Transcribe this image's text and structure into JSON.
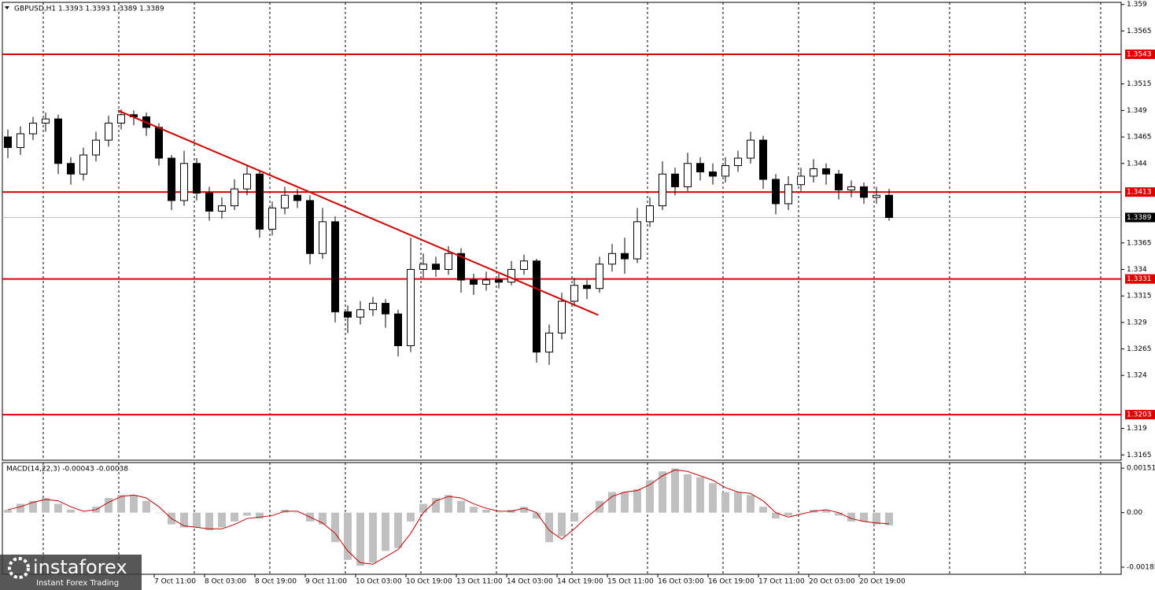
{
  "chart_data": {
    "type": "candlestick",
    "header": "GBPUSD,H1  1.3393 1.3393 1.3389 1.3389",
    "categories": [
      null,
      null,
      null,
      null,
      null,
      null,
      null,
      null,
      null,
      null,
      null,
      null,
      "7 Oct 11:00",
      null,
      null,
      null,
      "8 Oct 03:00",
      null,
      null,
      null,
      "8 Oct 19:00",
      null,
      null,
      null,
      "9 Oct 11:00",
      null,
      null,
      null,
      "10 Oct 03:00",
      null,
      null,
      null,
      "10 Oct 19:00",
      null,
      null,
      null,
      "13 Oct 11:00",
      null,
      null,
      null,
      "14 Oct 03:00",
      null,
      null,
      null,
      "14 Oct 19:00",
      null,
      null,
      null,
      "15 Oct 11:00",
      null,
      null,
      null,
      "16 Oct 03:00",
      null,
      null,
      null,
      "16 Oct 19:00",
      null,
      null,
      null,
      "17 Oct 11:00",
      null,
      null,
      null,
      "20 Oct 03:00",
      null,
      null,
      null,
      "20 Oct 19:00",
      null,
      null
    ],
    "open": [
      1.3465,
      1.3455,
      1.3468,
      1.3478,
      1.3482,
      1.344,
      1.343,
      1.3448,
      1.3462,
      1.3478,
      1.3486,
      1.3484,
      1.3474,
      1.3445,
      1.3405,
      1.344,
      1.3412,
      1.3395,
      1.34,
      1.3416,
      1.343,
      1.3378,
      1.3398,
      1.341,
      1.3405,
      1.3355,
      1.3385,
      1.33,
      1.3295,
      1.3302,
      1.3308,
      1.3298,
      1.3268,
      1.334,
      1.3345,
      1.334,
      1.3355,
      1.333,
      1.3326,
      1.333,
      1.3328,
      1.334,
      1.3348,
      1.3262,
      1.328,
      1.331,
      1.3325,
      1.3322,
      1.3345,
      1.3355,
      1.335,
      1.3385,
      1.34,
      1.343,
      1.3418,
      1.344,
      1.3432,
      1.3428,
      1.3438,
      1.3445,
      1.3462,
      1.3425,
      1.3402,
      1.342,
      1.3428,
      1.3435,
      1.343,
      1.3415,
      1.3418,
      1.3408,
      1.341
    ],
    "high": [
      1.3472,
      1.3475,
      1.3484,
      1.3488,
      1.3486,
      1.3446,
      1.3455,
      1.347,
      1.3485,
      1.3491,
      1.349,
      1.3488,
      1.3478,
      1.3448,
      1.3452,
      1.3445,
      1.3418,
      1.3408,
      1.3425,
      1.3438,
      1.3434,
      1.3404,
      1.3418,
      1.3416,
      1.341,
      1.3398,
      1.339,
      1.3306,
      1.331,
      1.3314,
      1.3312,
      1.3302,
      1.337,
      1.3355,
      1.3352,
      1.3362,
      1.336,
      1.3336,
      1.3338,
      1.3336,
      1.3348,
      1.3354,
      1.335,
      1.3288,
      1.3318,
      1.3332,
      1.333,
      1.3352,
      1.3364,
      1.337,
      1.3398,
      1.3408,
      1.3442,
      1.3436,
      1.345,
      1.3446,
      1.344,
      1.3446,
      1.3452,
      1.347,
      1.3466,
      1.343,
      1.3428,
      1.3436,
      1.3444,
      1.344,
      1.3434,
      1.3424,
      1.3422,
      1.3418,
      1.3416
    ],
    "low": [
      1.3445,
      1.3448,
      1.3462,
      1.347,
      1.343,
      1.342,
      1.3424,
      1.3442,
      1.3456,
      1.3472,
      1.3476,
      1.3466,
      1.3438,
      1.3396,
      1.34,
      1.3405,
      1.3386,
      1.3388,
      1.3396,
      1.341,
      1.337,
      1.3372,
      1.3392,
      1.3398,
      1.3345,
      1.335,
      1.329,
      1.328,
      1.3288,
      1.3296,
      1.3285,
      1.3258,
      1.3262,
      1.3332,
      1.3333,
      1.3335,
      1.3318,
      1.3316,
      1.332,
      1.3322,
      1.3325,
      1.3335,
      1.3252,
      1.325,
      1.3274,
      1.3305,
      1.3312,
      1.3318,
      1.3338,
      1.3336,
      1.3346,
      1.338,
      1.3396,
      1.341,
      1.3414,
      1.3424,
      1.342,
      1.3422,
      1.3432,
      1.344,
      1.3416,
      1.3392,
      1.3396,
      1.3414,
      1.3422,
      1.342,
      1.3406,
      1.3408,
      1.3402,
      1.3402,
      1.3386
    ],
    "close": [
      1.3455,
      1.3468,
      1.3478,
      1.3482,
      1.344,
      1.343,
      1.3448,
      1.3462,
      1.3478,
      1.3486,
      1.3484,
      1.3474,
      1.3445,
      1.3405,
      1.344,
      1.3412,
      1.3395,
      1.34,
      1.3416,
      1.343,
      1.3378,
      1.3398,
      1.341,
      1.3405,
      1.3355,
      1.3385,
      1.33,
      1.3295,
      1.3302,
      1.3308,
      1.3298,
      1.3268,
      1.334,
      1.3345,
      1.334,
      1.3355,
      1.333,
      1.3326,
      1.333,
      1.3328,
      1.334,
      1.3348,
      1.3262,
      1.328,
      1.331,
      1.3325,
      1.3322,
      1.3345,
      1.3355,
      1.335,
      1.3385,
      1.34,
      1.343,
      1.3418,
      1.344,
      1.3432,
      1.3428,
      1.3438,
      1.3445,
      1.3462,
      1.3425,
      1.3402,
      1.342,
      1.3428,
      1.3435,
      1.343,
      1.3415,
      1.3418,
      1.3408,
      1.341,
      1.3389
    ],
    "ylim": [
      1.316,
      1.3592
    ],
    "yticks": [
      1.359,
      1.3565,
      1.3515,
      1.349,
      1.3465,
      1.344,
      1.3365,
      1.334,
      1.3315,
      1.329,
      1.3265,
      1.324,
      1.319,
      1.3165
    ],
    "levels": [
      1.3543,
      1.3413,
      1.3331,
      1.3203
    ],
    "level_color": "#e00000",
    "last_price": 1.3389,
    "trend_line": {
      "x": [
        8.75,
        46.9
      ],
      "y": [
        1.349,
        1.3297
      ],
      "color": "#d00000"
    },
    "indicator": {
      "type": "macd",
      "title": "MACD(14,22,3) -0.00043 -0.00038",
      "histogram": [
        0.0001,
        0.0003,
        0.0004,
        0.0005,
        0.0003,
        0.0001,
        0,
        0.0002,
        0.0005,
        0.0006,
        0.0006,
        0.0004,
        0,
        -0.0004,
        -0.0005,
        -0.0005,
        -0.0006,
        -0.0005,
        -0.0003,
        -0.0001,
        -0.0002,
        0,
        0.0001,
        0,
        -0.0003,
        -0.0004,
        -0.001,
        -0.0016,
        -0.0018,
        -0.0017,
        -0.0013,
        -0.0012,
        -0.0003,
        0.0003,
        0.0005,
        0.0006,
        0.0004,
        0.0002,
        0.0001,
        0,
        0.0001,
        0.0002,
        -0.0002,
        -0.001,
        -0.0008,
        -0.0003,
        0,
        0.0004,
        0.0007,
        0.0007,
        0.0008,
        0.0011,
        0.0014,
        0.0015,
        0.0013,
        0.0012,
        0.001,
        0.0007,
        0.0007,
        0.0006,
        0.0002,
        -0.0002,
        -0.0001,
        0,
        0.0001,
        0.0001,
        -0.0001,
        -0.0003,
        -0.0003,
        -0.0004,
        -0.00043
      ],
      "signal": [
        0.0001,
        0.0002,
        0.00035,
        0.00045,
        0.0004,
        0.0002,
        5e-05,
        0.0001,
        0.00035,
        0.00055,
        0.0006,
        0.0005,
        0.0002,
        -0.0002,
        -0.00045,
        -0.0005,
        -0.00055,
        -0.00055,
        -0.0004,
        -0.0002,
        -0.00015,
        -0.0001,
        5e-05,
        5e-05,
        -0.00015,
        -0.00035,
        -0.0007,
        -0.0013,
        -0.0017,
        -0.00175,
        -0.0015,
        -0.00125,
        -0.0007,
        0,
        0.0004,
        0.00055,
        0.0005,
        0.0003,
        0.00015,
        5e-05,
        5e-05,
        0.00015,
        0,
        -0.0006,
        -0.0009,
        -0.00055,
        -0.00015,
        0.0002,
        0.00055,
        0.0007,
        0.00075,
        0.00095,
        0.00125,
        0.00145,
        0.0014,
        0.00125,
        0.0011,
        0.00085,
        0.0007,
        0.00065,
        0.0004,
        0,
        -0.00015,
        -5e-05,
        5e-05,
        0.0001,
        0,
        -0.0002,
        -0.0003,
        -0.00035,
        -0.00038
      ],
      "histogram_color": "#c0c0c0",
      "signal_color": "#c00000",
      "ylim": [
        -0.00209,
        0.0017
      ],
      "yticks": [
        0.00151,
        {
          "value": 0,
          "label": "0.00"
        },
        -0.00185
      ]
    }
  },
  "logo": {
    "name": "instaforex",
    "tagline": "Instant Forex Trading"
  }
}
